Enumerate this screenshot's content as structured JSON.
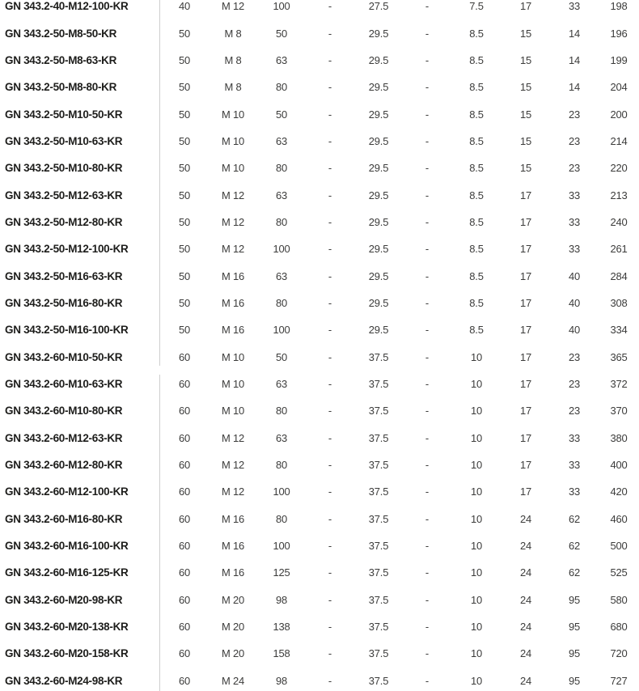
{
  "table": {
    "description_label": "product-variants-table",
    "divider_color": "#cfcfcf",
    "part_number_color": "#1d1d1b",
    "data_text_color": "#3c3c3b",
    "section_break_after_row_index": 13,
    "rows": [
      [
        "GN 343.2-40-M12-100-KR",
        "40",
        "M 12",
        "100",
        "-",
        "27.5",
        "-",
        "7.5",
        "17",
        "33",
        "198"
      ],
      [
        "GN 343.2-50-M8-50-KR",
        "50",
        "M 8",
        "50",
        "-",
        "29.5",
        "-",
        "8.5",
        "15",
        "14",
        "196"
      ],
      [
        "GN 343.2-50-M8-63-KR",
        "50",
        "M 8",
        "63",
        "-",
        "29.5",
        "-",
        "8.5",
        "15",
        "14",
        "199"
      ],
      [
        "GN 343.2-50-M8-80-KR",
        "50",
        "M 8",
        "80",
        "-",
        "29.5",
        "-",
        "8.5",
        "15",
        "14",
        "204"
      ],
      [
        "GN 343.2-50-M10-50-KR",
        "50",
        "M 10",
        "50",
        "-",
        "29.5",
        "-",
        "8.5",
        "15",
        "23",
        "200"
      ],
      [
        "GN 343.2-50-M10-63-KR",
        "50",
        "M 10",
        "63",
        "-",
        "29.5",
        "-",
        "8.5",
        "15",
        "23",
        "214"
      ],
      [
        "GN 343.2-50-M10-80-KR",
        "50",
        "M 10",
        "80",
        "-",
        "29.5",
        "-",
        "8.5",
        "15",
        "23",
        "220"
      ],
      [
        "GN 343.2-50-M12-63-KR",
        "50",
        "M 12",
        "63",
        "-",
        "29.5",
        "-",
        "8.5",
        "17",
        "33",
        "213"
      ],
      [
        "GN 343.2-50-M12-80-KR",
        "50",
        "M 12",
        "80",
        "-",
        "29.5",
        "-",
        "8.5",
        "17",
        "33",
        "240"
      ],
      [
        "GN 343.2-50-M12-100-KR",
        "50",
        "M 12",
        "100",
        "-",
        "29.5",
        "-",
        "8.5",
        "17",
        "33",
        "261"
      ],
      [
        "GN 343.2-50-M16-63-KR",
        "50",
        "M 16",
        "63",
        "-",
        "29.5",
        "-",
        "8.5",
        "17",
        "40",
        "284"
      ],
      [
        "GN 343.2-50-M16-80-KR",
        "50",
        "M 16",
        "80",
        "-",
        "29.5",
        "-",
        "8.5",
        "17",
        "40",
        "308"
      ],
      [
        "GN 343.2-50-M16-100-KR",
        "50",
        "M 16",
        "100",
        "-",
        "29.5",
        "-",
        "8.5",
        "17",
        "40",
        "334"
      ],
      [
        "GN 343.2-60-M10-50-KR",
        "60",
        "M 10",
        "50",
        "-",
        "37.5",
        "-",
        "10",
        "17",
        "23",
        "365"
      ],
      [
        "GN 343.2-60-M10-63-KR",
        "60",
        "M 10",
        "63",
        "-",
        "37.5",
        "-",
        "10",
        "17",
        "23",
        "372"
      ],
      [
        "GN 343.2-60-M10-80-KR",
        "60",
        "M 10",
        "80",
        "-",
        "37.5",
        "-",
        "10",
        "17",
        "23",
        "370"
      ],
      [
        "GN 343.2-60-M12-63-KR",
        "60",
        "M 12",
        "63",
        "-",
        "37.5",
        "-",
        "10",
        "17",
        "33",
        "380"
      ],
      [
        "GN 343.2-60-M12-80-KR",
        "60",
        "M 12",
        "80",
        "-",
        "37.5",
        "-",
        "10",
        "17",
        "33",
        "400"
      ],
      [
        "GN 343.2-60-M12-100-KR",
        "60",
        "M 12",
        "100",
        "-",
        "37.5",
        "-",
        "10",
        "17",
        "33",
        "420"
      ],
      [
        "GN 343.2-60-M16-80-KR",
        "60",
        "M 16",
        "80",
        "-",
        "37.5",
        "-",
        "10",
        "24",
        "62",
        "460"
      ],
      [
        "GN 343.2-60-M16-100-KR",
        "60",
        "M 16",
        "100",
        "-",
        "37.5",
        "-",
        "10",
        "24",
        "62",
        "500"
      ],
      [
        "GN 343.2-60-M16-125-KR",
        "60",
        "M 16",
        "125",
        "-",
        "37.5",
        "-",
        "10",
        "24",
        "62",
        "525"
      ],
      [
        "GN 343.2-60-M20-98-KR",
        "60",
        "M 20",
        "98",
        "-",
        "37.5",
        "-",
        "10",
        "24",
        "95",
        "580"
      ],
      [
        "GN 343.2-60-M20-138-KR",
        "60",
        "M 20",
        "138",
        "-",
        "37.5",
        "-",
        "10",
        "24",
        "95",
        "680"
      ],
      [
        "GN 343.2-60-M20-158-KR",
        "60",
        "M 20",
        "158",
        "-",
        "37.5",
        "-",
        "10",
        "24",
        "95",
        "720"
      ],
      [
        "GN 343.2-60-M24-98-KR",
        "60",
        "M 24",
        "98",
        "-",
        "37.5",
        "-",
        "10",
        "24",
        "95",
        "727"
      ]
    ]
  }
}
